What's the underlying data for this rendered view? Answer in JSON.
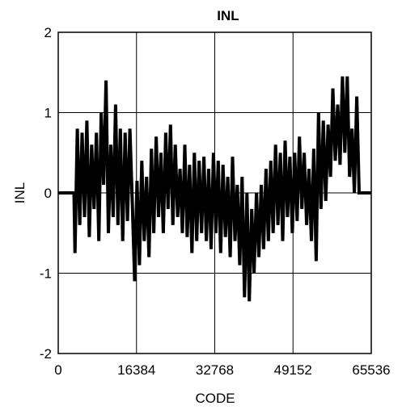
{
  "chart_data": {
    "type": "line",
    "title": "INL",
    "xlabel": "CODE",
    "ylabel": "INL",
    "xlim": [
      0,
      65536
    ],
    "ylim": [
      -2,
      2
    ],
    "xticks": [
      0,
      16384,
      32768,
      49152,
      65536
    ],
    "xtick_labels": [
      "0",
      "16384",
      "32768",
      "49152",
      "65536"
    ],
    "yticks": [
      2,
      1,
      0,
      -1,
      -2
    ],
    "ytick_labels": [
      "2",
      "1",
      "0",
      "-1",
      "-2"
    ],
    "grid": true,
    "legend": "none",
    "colors": {
      "line": "#000000",
      "grid": "#000000",
      "background": "#ffffff"
    },
    "series": [
      {
        "values_note_x": "CODE",
        "x": [
          0,
          3300,
          3500,
          4000,
          4500,
          5000,
          5500,
          6000,
          6500,
          7000,
          7500,
          8000,
          8500,
          9000,
          9500,
          10000,
          10500,
          11000,
          11500,
          12000,
          12500,
          13000,
          13500,
          14000,
          14500,
          15000,
          15500,
          16000,
          16500,
          17000,
          17500,
          18000,
          18500,
          19000,
          19500,
          20000,
          20500,
          21000,
          21500,
          22000,
          22500,
          23000,
          23500,
          24000,
          24500,
          25000,
          25500,
          26000,
          26500,
          27000,
          27500,
          28000,
          28500,
          29000,
          29500,
          30000,
          30500,
          31000,
          31500,
          32000,
          32500,
          33000,
          33500,
          34000,
          34500,
          35000,
          35500,
          36000,
          36500,
          37000,
          37500,
          38000,
          38500,
          39000,
          39500,
          40000,
          40500,
          41000,
          41500,
          42000,
          42500,
          43000,
          43500,
          44000,
          44500,
          45000,
          45500,
          46000,
          46500,
          47000,
          47500,
          48000,
          48500,
          49000,
          49500,
          50000,
          50500,
          51000,
          51500,
          52000,
          52500,
          53000,
          53500,
          54000,
          54500,
          55000,
          55500,
          56000,
          56500,
          57000,
          57500,
          58000,
          58500,
          59000,
          59500,
          60000,
          60500,
          61000,
          61500,
          62000,
          62500,
          63000,
          65536
        ],
        "y": [
          0,
          0,
          -0.75,
          0.8,
          -0.4,
          0.75,
          -0.3,
          0.9,
          -0.55,
          0.6,
          -0.2,
          0.75,
          -0.6,
          1.0,
          0.1,
          1.4,
          -0.5,
          0.6,
          -0.3,
          1.1,
          -0.4,
          0.8,
          -0.6,
          0.75,
          -0.35,
          0.8,
          -0.1,
          -1.1,
          0.15,
          -0.9,
          0.4,
          -0.6,
          0.2,
          -0.8,
          0.55,
          -0.5,
          0.7,
          -0.3,
          0.5,
          -0.5,
          0.75,
          -0.2,
          0.85,
          -0.4,
          0.6,
          -0.3,
          0.3,
          -0.5,
          0.6,
          -0.55,
          0.35,
          -0.75,
          0.5,
          -0.6,
          0.4,
          -0.5,
          0.45,
          -0.6,
          0.3,
          -0.7,
          0.5,
          -0.5,
          0.4,
          -0.75,
          0.35,
          -0.55,
          0.2,
          -0.8,
          0.45,
          -0.6,
          0.1,
          -0.9,
          0.2,
          -1.3,
          0.0,
          -1.35,
          -0.2,
          -1.0,
          0.0,
          -0.8,
          0.1,
          -0.7,
          0.3,
          -0.6,
          0.4,
          -0.5,
          0.6,
          -0.4,
          0.5,
          -0.6,
          0.65,
          -0.3,
          0.45,
          -0.5,
          0.5,
          -0.35,
          0.7,
          -0.2,
          0.5,
          -0.4,
          0.3,
          -0.6,
          0.55,
          -0.85,
          1.0,
          -0.2,
          0.9,
          -0.1,
          0.85,
          0.2,
          1.3,
          0.4,
          1.1,
          0.35,
          1.45,
          0.5,
          1.45,
          0.2,
          0.8,
          0.0,
          1.2,
          0.0,
          0.0
        ]
      }
    ]
  }
}
